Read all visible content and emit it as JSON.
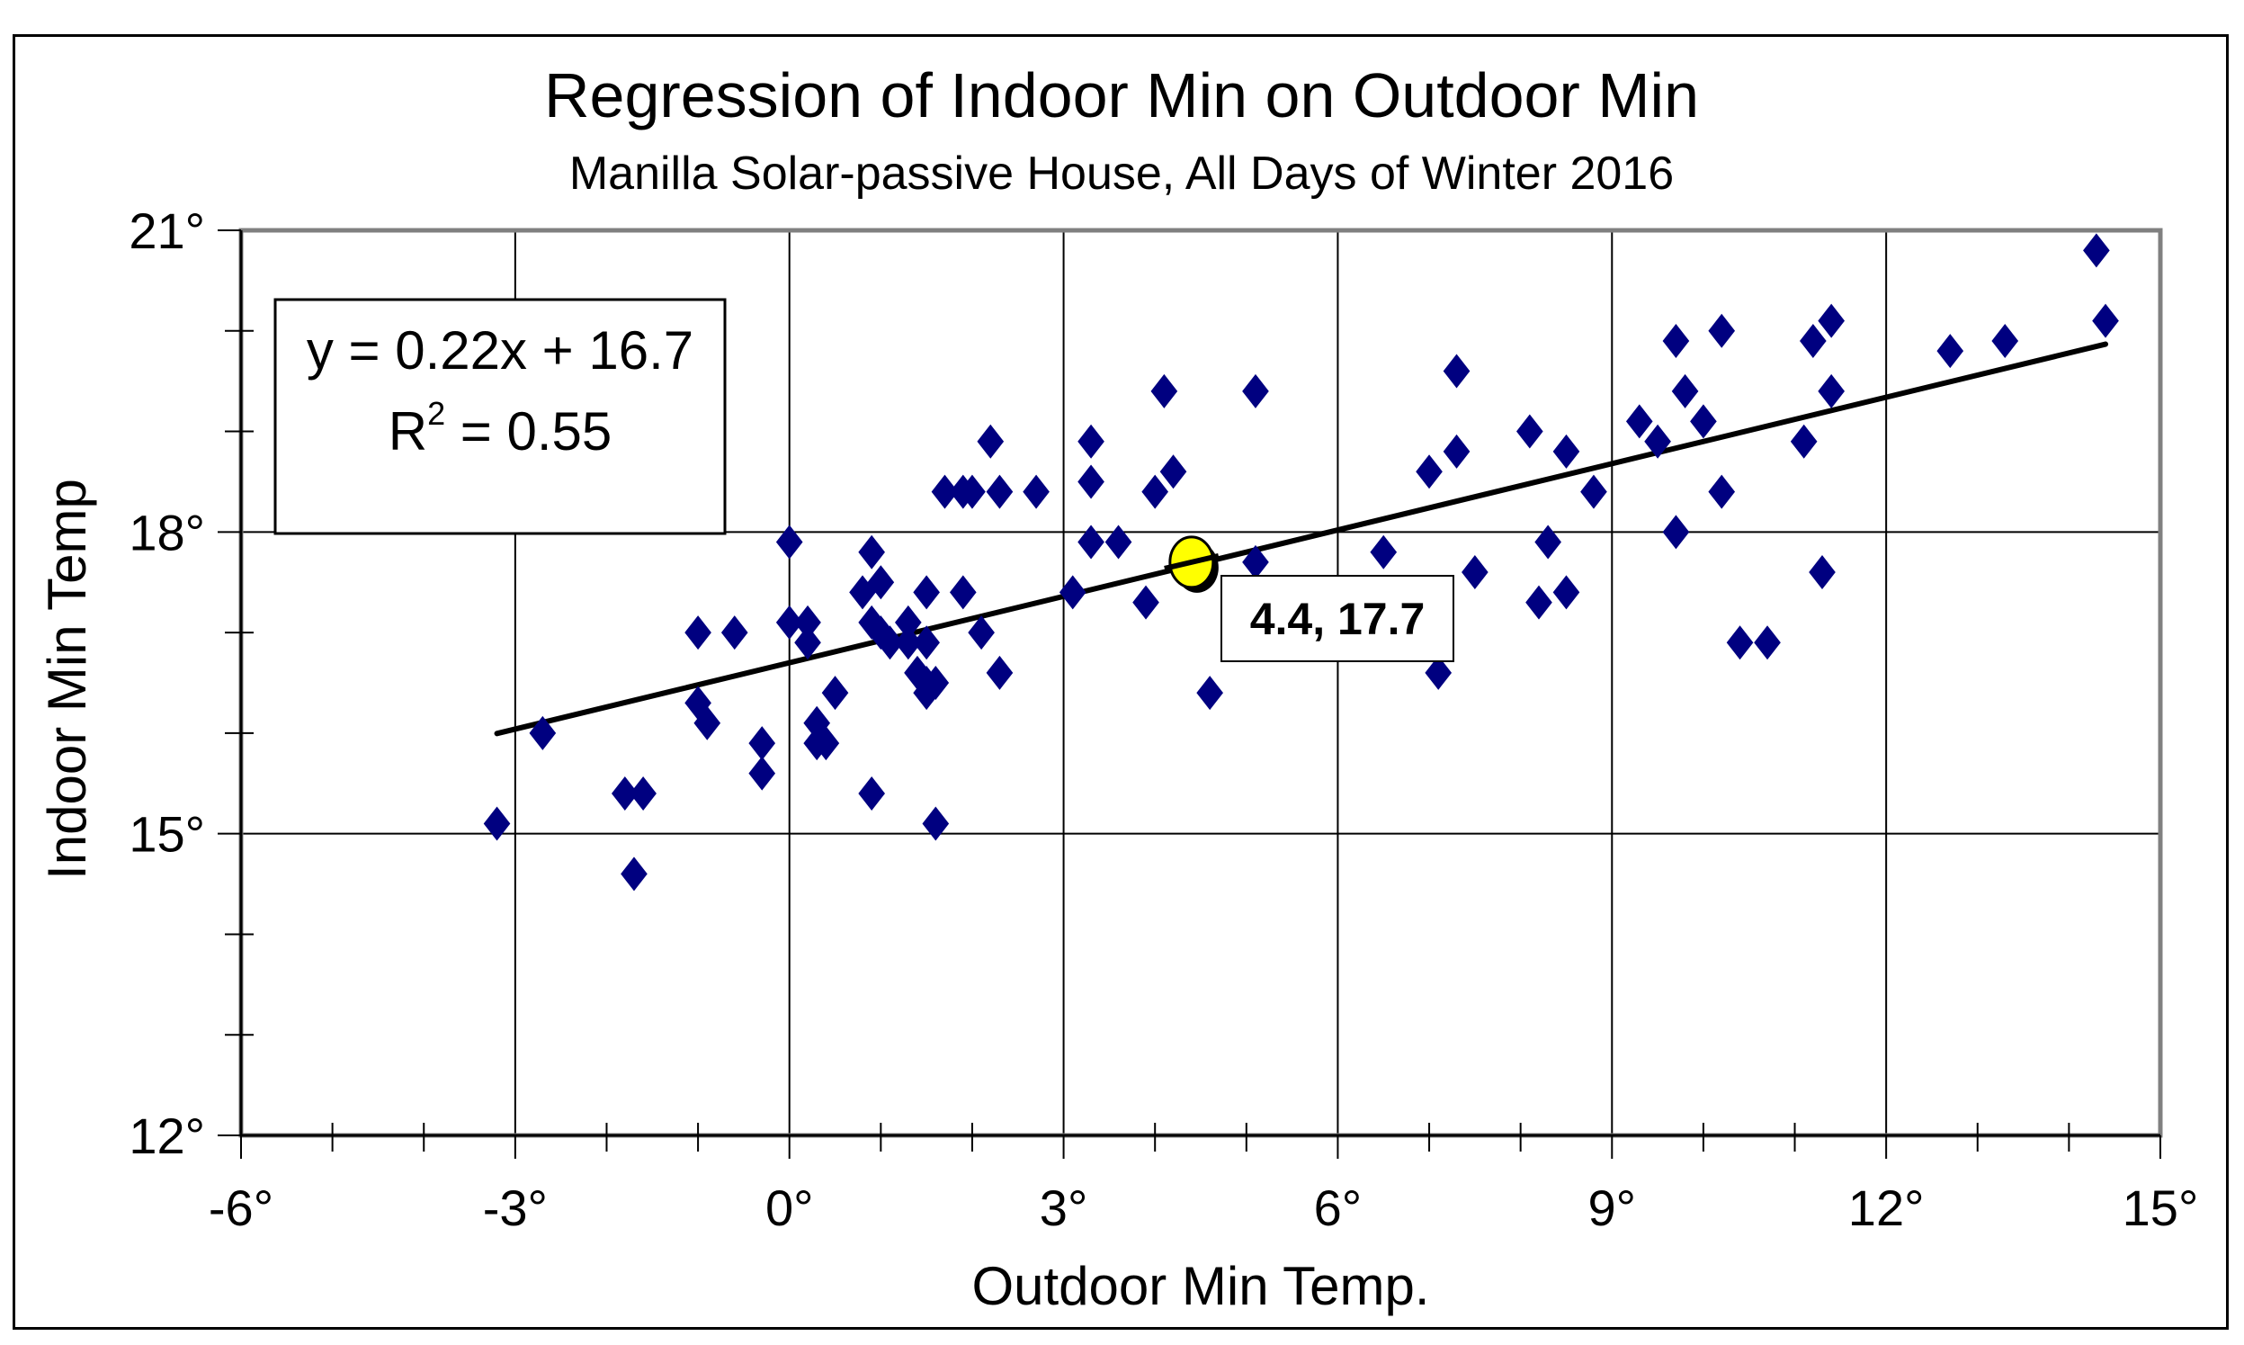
{
  "chart_data": {
    "type": "scatter",
    "title": "Regression of Indoor Min on Outdoor Min",
    "subtitle": "Manilla Solar-passive House, All Days of Winter 2016",
    "xlabel": "Outdoor Min Temp.",
    "ylabel": "Indoor Min Temp",
    "xlim": [
      -6,
      15
    ],
    "ylim": [
      12,
      21
    ],
    "x_ticks": [
      -6,
      -3,
      0,
      3,
      6,
      9,
      12,
      15
    ],
    "x_tick_labels": [
      "-6°",
      "-3°",
      "0°",
      "3°",
      "6°",
      "9°",
      "12°",
      "15°"
    ],
    "y_ticks": [
      12,
      15,
      18,
      21
    ],
    "y_tick_labels": [
      "12°",
      "15°",
      "18°",
      "21°"
    ],
    "grid": true,
    "marker_color": "#000080",
    "highlight_color": "#ffff00",
    "series": [
      {
        "name": "Days",
        "points": [
          [
            -3.2,
            15.1
          ],
          [
            -2.7,
            16.0
          ],
          [
            -1.8,
            15.4
          ],
          [
            -1.6,
            15.4
          ],
          [
            -1.7,
            14.6
          ],
          [
            -1.0,
            17.0
          ],
          [
            -1.0,
            16.3
          ],
          [
            -0.9,
            16.1
          ],
          [
            -0.6,
            17.0
          ],
          [
            -0.3,
            15.9
          ],
          [
            -0.3,
            15.6
          ],
          [
            0.0,
            17.9
          ],
          [
            0.0,
            17.1
          ],
          [
            0.2,
            17.1
          ],
          [
            0.2,
            16.9
          ],
          [
            0.3,
            16.1
          ],
          [
            0.3,
            15.9
          ],
          [
            0.4,
            15.9
          ],
          [
            0.5,
            16.4
          ],
          [
            0.8,
            17.4
          ],
          [
            0.9,
            17.8
          ],
          [
            0.9,
            17.1
          ],
          [
            0.9,
            15.4
          ],
          [
            1.0,
            17.5
          ],
          [
            1.0,
            17.0
          ],
          [
            1.1,
            16.9
          ],
          [
            1.3,
            17.1
          ],
          [
            1.3,
            16.9
          ],
          [
            1.4,
            16.6
          ],
          [
            1.5,
            16.5
          ],
          [
            1.5,
            17.4
          ],
          [
            1.5,
            16.9
          ],
          [
            1.5,
            16.4
          ],
          [
            1.6,
            16.5
          ],
          [
            1.6,
            15.1
          ],
          [
            1.7,
            18.4
          ],
          [
            1.9,
            18.4
          ],
          [
            2.0,
            18.4
          ],
          [
            1.9,
            17.4
          ],
          [
            2.1,
            17.0
          ],
          [
            2.2,
            18.9
          ],
          [
            2.3,
            18.4
          ],
          [
            2.3,
            16.6
          ],
          [
            2.7,
            18.4
          ],
          [
            3.1,
            17.4
          ],
          [
            3.3,
            18.9
          ],
          [
            3.3,
            18.5
          ],
          [
            3.3,
            17.9
          ],
          [
            3.6,
            17.9
          ],
          [
            3.9,
            17.3
          ],
          [
            4.0,
            18.4
          ],
          [
            4.1,
            19.4
          ],
          [
            4.2,
            18.6
          ],
          [
            4.6,
            16.4
          ],
          [
            5.1,
            17.7
          ],
          [
            5.1,
            19.4
          ],
          [
            6.5,
            17.8
          ],
          [
            7.0,
            18.6
          ],
          [
            7.1,
            16.6
          ],
          [
            7.3,
            19.6
          ],
          [
            7.3,
            18.8
          ],
          [
            7.5,
            17.6
          ],
          [
            8.1,
            19.0
          ],
          [
            8.2,
            17.3
          ],
          [
            8.3,
            17.9
          ],
          [
            8.5,
            18.8
          ],
          [
            8.5,
            17.4
          ],
          [
            8.8,
            18.4
          ],
          [
            9.3,
            19.1
          ],
          [
            9.5,
            18.9
          ],
          [
            9.7,
            19.9
          ],
          [
            9.7,
            18.0
          ],
          [
            9.8,
            19.4
          ],
          [
            10.0,
            19.1
          ],
          [
            10.2,
            20.0
          ],
          [
            10.2,
            18.4
          ],
          [
            10.4,
            16.9
          ],
          [
            10.7,
            16.9
          ],
          [
            11.1,
            18.9
          ],
          [
            11.2,
            19.9
          ],
          [
            11.3,
            17.6
          ],
          [
            11.4,
            20.1
          ],
          [
            11.4,
            19.4
          ],
          [
            12.7,
            19.8
          ],
          [
            13.3,
            19.9
          ],
          [
            14.3,
            20.8
          ],
          [
            14.4,
            20.1
          ]
        ]
      }
    ],
    "trendline": {
      "slope": 0.22,
      "intercept": 16.7,
      "x_start": -3.2,
      "x_end": 14.4
    },
    "equation_box": {
      "line1": "y = 0.22x + 16.7",
      "r2_prefix": "R",
      "r2_sup": "2",
      "r2_suffix": " = 0.55"
    },
    "highlight_point": {
      "x": 4.4,
      "y": 17.7,
      "label": "4.4, 17.7"
    }
  }
}
